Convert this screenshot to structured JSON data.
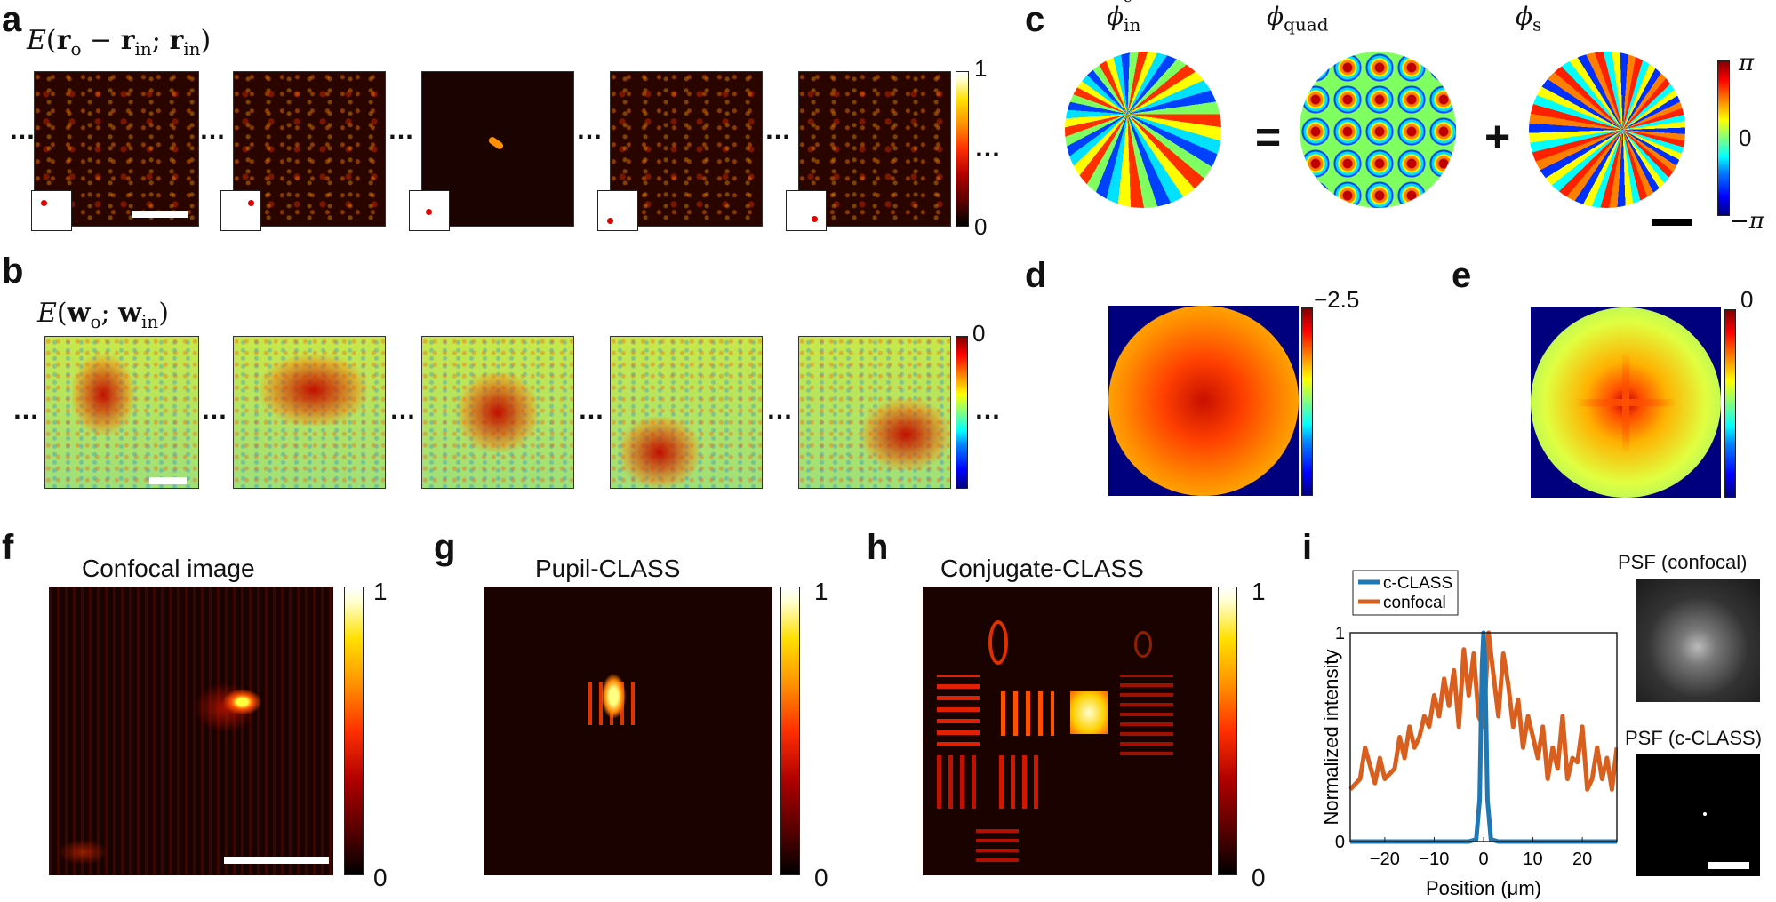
{
  "labels": {
    "a": "a",
    "b": "b",
    "c": "c",
    "d": "d",
    "e": "e",
    "f": "f",
    "g": "g",
    "h": "h",
    "i": "i"
  },
  "panel_a": {
    "cbar_max": "1",
    "cbar_min": "0",
    "dots": "…"
  },
  "panel_b": {
    "cbar_max": "0",
    "dots": "…"
  },
  "panel_c": {
    "cbar_max": "π",
    "cbar_mid": "0",
    "cbar_min": "−π",
    "equals": "=",
    "plus": "+"
  },
  "panel_d": {
    "cbar_max": "−2.5"
  },
  "panel_e": {
    "cbar_max": "0"
  },
  "panel_f": {
    "title": "Confocal image",
    "cbar_max": "1",
    "cbar_min": "0"
  },
  "panel_g": {
    "title": "Pupil-CLASS",
    "cbar_max": "1",
    "cbar_min": "0"
  },
  "panel_h": {
    "title": "Conjugate-CLASS",
    "cbar_max": "1",
    "cbar_min": "0"
  },
  "panel_i": {
    "psf_confocal_title": "PSF (confocal)",
    "psf_cclass_title": "PSF (c-CLASS)"
  },
  "chart_data": {
    "type": "line",
    "xlabel": "Position (μm)",
    "ylabel": "Normalized intensity",
    "xlim": [
      -27,
      27
    ],
    "ylim": [
      0,
      1
    ],
    "xticks": [
      -20,
      -10,
      0,
      10,
      20
    ],
    "xtick_labels": [
      "−20",
      "−10",
      "0",
      "10",
      "20"
    ],
    "ytick_labels": [
      "0",
      "1"
    ],
    "legend_position": "top-left",
    "series": [
      {
        "name": "c-CLASS",
        "color": "#1f77b4",
        "x": [
          -27,
          -3,
          -1.5,
          -0.8,
          -0.3,
          0,
          0.3,
          0.8,
          1.5,
          3,
          27
        ],
        "y": [
          0.0,
          0.0,
          0.01,
          0.2,
          0.85,
          1.0,
          0.85,
          0.2,
          0.01,
          0.0,
          0.0
        ]
      },
      {
        "name": "confocal",
        "color": "#d95f1e",
        "x": [
          -27,
          -25,
          -24,
          -22,
          -21,
          -20,
          -18,
          -17,
          -16,
          -15,
          -14,
          -13,
          -12,
          -11,
          -10,
          -9,
          -8,
          -7,
          -6,
          -5,
          -4,
          -3,
          -2,
          -1,
          0,
          1,
          2,
          3,
          4,
          5,
          6,
          7,
          8,
          9,
          10,
          11,
          12,
          13,
          14,
          15,
          16,
          17,
          18,
          19,
          20,
          21,
          22,
          23,
          24,
          25,
          26,
          27
        ],
        "y": [
          0.25,
          0.3,
          0.45,
          0.28,
          0.4,
          0.3,
          0.35,
          0.5,
          0.4,
          0.55,
          0.45,
          0.5,
          0.6,
          0.55,
          0.7,
          0.6,
          0.78,
          0.65,
          0.82,
          0.55,
          0.92,
          0.7,
          0.9,
          0.6,
          0.55,
          1.0,
          0.8,
          0.6,
          0.9,
          0.75,
          0.55,
          0.68,
          0.45,
          0.6,
          0.5,
          0.4,
          0.55,
          0.3,
          0.45,
          0.35,
          0.6,
          0.3,
          0.4,
          0.38,
          0.55,
          0.25,
          0.3,
          0.45,
          0.3,
          0.4,
          0.25,
          0.45
        ]
      }
    ]
  },
  "colors": {
    "hot": "#ff3000",
    "jet_high": "#800000",
    "jet_low": "#00007f",
    "cclass": "#1f77b4",
    "confocal": "#d95f1e"
  }
}
